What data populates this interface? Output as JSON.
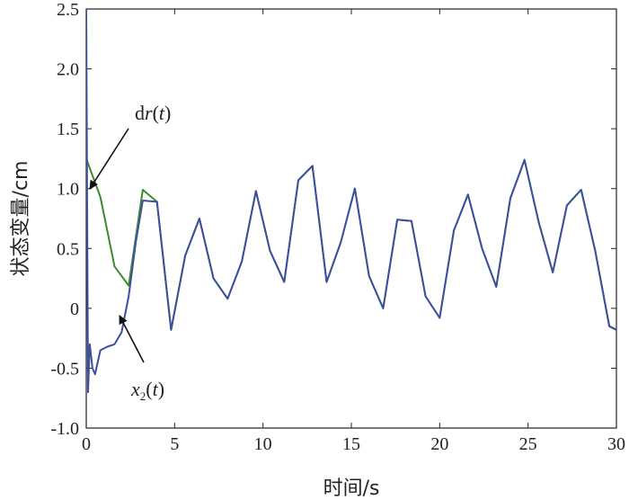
{
  "chart_data": {
    "type": "line",
    "xlabel": "时间/s",
    "ylabel": "状态变量/cm",
    "xlim": [
      0,
      30
    ],
    "ylim": [
      -1.0,
      2.5
    ],
    "x_ticks": [
      0,
      5,
      10,
      15,
      20,
      25,
      30
    ],
    "x_tick_labels": [
      "0",
      "5",
      "10",
      "15",
      "20",
      "25",
      "30"
    ],
    "y_ticks": [
      -1.0,
      -0.5,
      0,
      0.5,
      1.0,
      1.5,
      2.0,
      2.5
    ],
    "y_tick_labels": [
      "-1.0",
      "-0.5",
      "0",
      "0.5",
      "1.0",
      "1.5",
      "2.0",
      "2.5"
    ],
    "grid": false,
    "legend": "none",
    "series": [
      {
        "color": "#3c8c2c",
        "x": [
          0.0,
          0.8,
          1.6,
          2.4,
          3.2,
          4.0,
          4.8,
          5.6,
          6.4,
          7.2,
          8.0,
          8.8,
          9.6,
          10.4,
          11.2,
          12.0,
          12.8,
          13.6,
          14.4,
          15.2,
          16.0,
          16.8,
          17.6,
          18.4,
          19.2,
          20.0,
          20.8,
          21.6,
          22.4,
          23.2,
          24.0,
          24.8,
          25.6,
          26.4,
          27.2,
          28.0,
          28.8,
          29.6,
          30.0
        ],
        "y": [
          1.25,
          0.93,
          0.35,
          0.19,
          0.99,
          0.89,
          -0.18,
          0.44,
          0.75,
          0.25,
          0.08,
          0.39,
          0.98,
          0.48,
          0.22,
          1.07,
          1.19,
          0.22,
          0.55,
          1.0,
          0.27,
          0.0,
          0.74,
          0.73,
          0.1,
          -0.08,
          0.65,
          0.95,
          0.5,
          0.18,
          0.92,
          1.24,
          0.72,
          0.3,
          0.86,
          0.99,
          0.48,
          -0.15,
          -0.18
        ]
      },
      {
        "color": "#3d4fa0",
        "x": [
          0.0,
          0.05,
          0.1,
          0.2,
          0.35,
          0.5,
          0.8,
          1.2,
          1.6,
          2.0,
          2.4,
          2.8,
          3.2,
          4.0,
          4.8,
          5.6,
          6.4,
          7.2,
          8.0,
          8.8,
          9.6,
          10.4,
          11.2,
          12.0,
          12.8,
          13.6,
          14.4,
          15.2,
          16.0,
          16.8,
          17.6,
          18.4,
          19.2,
          20.0,
          20.8,
          21.6,
          22.4,
          23.2,
          24.0,
          24.8,
          25.6,
          26.4,
          27.2,
          28.0,
          28.8,
          29.6,
          30.0
        ],
        "y": [
          2.5,
          0.85,
          -0.7,
          -0.3,
          -0.5,
          -0.55,
          -0.35,
          -0.32,
          -0.3,
          -0.2,
          0.1,
          0.55,
          0.9,
          0.89,
          -0.18,
          0.44,
          0.75,
          0.25,
          0.08,
          0.39,
          0.98,
          0.48,
          0.22,
          1.07,
          1.19,
          0.22,
          0.55,
          1.0,
          0.27,
          0.0,
          0.74,
          0.73,
          0.1,
          -0.08,
          0.65,
          0.95,
          0.5,
          0.18,
          0.92,
          1.24,
          0.72,
          0.3,
          0.86,
          0.99,
          0.48,
          -0.15,
          -0.18
        ]
      }
    ],
    "annotations": [
      {
        "text": "dr(t)",
        "arrow_from": [
          2.4,
          1.55
        ],
        "arrow_to": [
          0.2,
          1.0
        ]
      },
      {
        "text": "x2(t)",
        "arrow_from": [
          3.4,
          -0.58
        ],
        "arrow_to": [
          1.7,
          -0.08
        ]
      }
    ]
  },
  "annotation_text": {
    "dr_d": "d",
    "dr_r": "r",
    "dr_open": "(",
    "dr_t": "t",
    "dr_close": ")",
    "x2_x": "x",
    "x2_sub": "2",
    "x2_open": "(",
    "x2_t": "t",
    "x2_close": ")"
  }
}
